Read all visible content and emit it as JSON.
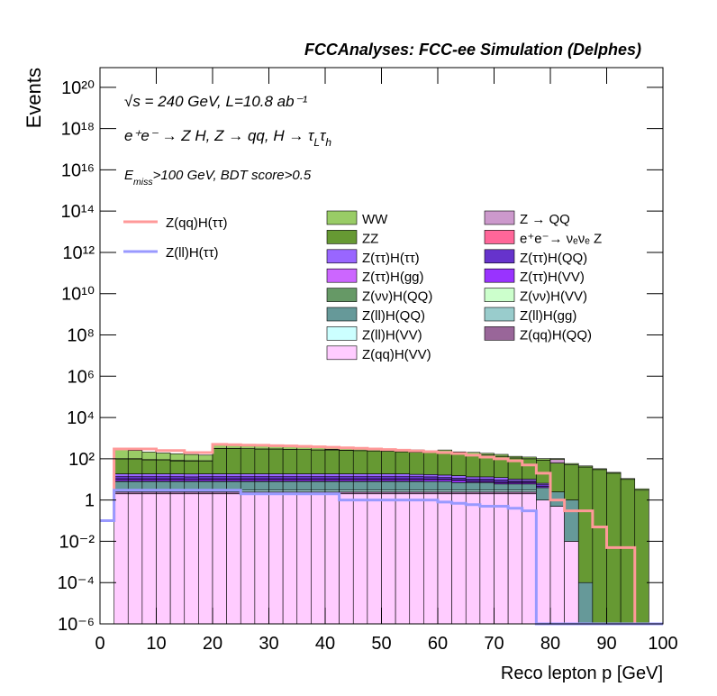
{
  "chart_data": {
    "type": "stacked_histogram",
    "title": "FCCAnalyses: FCC-ee Simulation (Delphes)",
    "annotations": [
      [
        "√s = 240 GeV, L=10.8 ab⁻¹"
      ],
      [
        "e⁺e⁻ → Z H, Z → qq, H → τ",
        "L",
        "τ",
        "h"
      ],
      [
        "E",
        "miss",
        ">100 GeV, BDT score>0.5"
      ]
    ],
    "x_label": "Reco lepton p [GeV]",
    "y_label": "Events",
    "log_y": true,
    "xlim": [
      0,
      100
    ],
    "xticks": [
      0,
      10,
      20,
      30,
      40,
      50,
      60,
      70,
      80,
      90,
      100
    ],
    "ylim": [
      1e-06,
      9e+20
    ],
    "yticks": [
      {
        "value": 1e-06,
        "label": "10⁻⁶"
      },
      {
        "value": 0.0001,
        "label": "10⁻⁴"
      },
      {
        "value": 0.01,
        "label": "10⁻²"
      },
      1,
      {
        "value": 100,
        "label": "10²"
      },
      {
        "value": 10000.0,
        "label": "10⁴"
      },
      {
        "value": 1000000.0,
        "label": "10⁶"
      },
      {
        "value": 100000000.0,
        "label": "10⁸"
      },
      {
        "value": 10000000000.0,
        "label": "10¹⁰"
      },
      {
        "value": 1000000000000.0,
        "label": "10¹²"
      },
      {
        "value": 100000000000000.0,
        "label": "10¹⁴"
      },
      {
        "value": 1e+16,
        "label": "10¹⁶"
      },
      {
        "value": 1e+18,
        "label": "10¹⁸"
      },
      {
        "value": 1e+20,
        "label": "10²⁰"
      }
    ],
    "bins": [
      0,
      2.5,
      5,
      7.5,
      10,
      12.5,
      15,
      17.5,
      20,
      22.5,
      25,
      27.5,
      30,
      32.5,
      35,
      37.5,
      40,
      42.5,
      45,
      47.5,
      50,
      52.5,
      55,
      57.5,
      60,
      62.5,
      65,
      67.5,
      70,
      72.5,
      75,
      77.5,
      80,
      82.5,
      85,
      87.5,
      90,
      92.5,
      95,
      97.5,
      100
    ],
    "series": [
      {
        "name": "WW",
        "color": "#99cc66",
        "values": [
          0,
          200,
          150,
          120,
          100,
          90,
          80,
          70,
          150,
          140,
          130,
          120,
          110,
          100,
          100,
          90,
          90,
          80,
          80,
          70,
          70,
          60,
          60,
          50,
          50,
          40,
          40,
          30,
          30,
          20,
          20,
          15,
          10,
          8,
          5,
          3,
          2,
          1,
          0.5,
          0
        ]
      },
      {
        "name": "Z → QQ",
        "color": "#cc99cc",
        "values": [
          0,
          3,
          3,
          3,
          2,
          5,
          3,
          2,
          3,
          3,
          2,
          2,
          2,
          2,
          2,
          2,
          20,
          2,
          2,
          2,
          2,
          2,
          2,
          1,
          30,
          1,
          1,
          1,
          1,
          1,
          1,
          1,
          30,
          0,
          0,
          0,
          0,
          0,
          0,
          0
        ]
      },
      {
        "name": "ZZ",
        "color": "#669933",
        "values": [
          0,
          80,
          80,
          70,
          70,
          60,
          60,
          60,
          300,
          300,
          290,
          280,
          280,
          270,
          260,
          250,
          250,
          240,
          230,
          220,
          210,
          200,
          190,
          180,
          170,
          160,
          150,
          140,
          120,
          100,
          90,
          80,
          60,
          50,
          40,
          30,
          20,
          10,
          3,
          0
        ]
      },
      {
        "name": "e⁺e⁻→ νₑνₑ Z",
        "color": "#ff6699",
        "values": [
          0,
          0,
          0,
          0,
          0,
          0,
          0,
          0,
          0.01,
          0.01,
          0,
          0,
          0,
          0,
          0,
          0,
          0,
          0,
          0,
          0,
          0,
          0,
          0,
          0,
          0,
          0,
          0,
          0,
          0,
          0,
          0,
          0,
          0,
          0,
          0,
          0,
          0,
          0,
          0,
          0
        ]
      },
      {
        "name": "Z(ττ)H(ττ)",
        "color": "#9966ff",
        "values": [
          0,
          5,
          5,
          5,
          5,
          5,
          5,
          5,
          5,
          5,
          5,
          5,
          5,
          5,
          5,
          5,
          5,
          5,
          5,
          5,
          5,
          5,
          4,
          4,
          4,
          4,
          3,
          3,
          3,
          2,
          2,
          1,
          0,
          0,
          0,
          0,
          0,
          0,
          0,
          0
        ]
      },
      {
        "name": "Z(ττ)H(QQ)",
        "color": "#6633cc",
        "values": [
          0,
          3,
          3,
          3,
          3,
          3,
          3,
          3,
          3,
          3,
          3,
          3,
          3,
          3,
          3,
          3,
          3,
          3,
          3,
          3,
          3,
          3,
          3,
          3,
          2,
          2,
          2,
          2,
          2,
          1,
          1,
          1,
          0,
          0,
          0,
          0,
          0,
          0,
          0,
          0
        ]
      },
      {
        "name": "Z(ττ)H(gg)",
        "color": "#cc66ff",
        "values": [
          0,
          0.3,
          0.3,
          0.3,
          0.3,
          0.3,
          0,
          0.3,
          0.3,
          0.3,
          0.3,
          0.3,
          0.3,
          0.3,
          0.3,
          0.3,
          0.3,
          0.3,
          0.3,
          0.3,
          0.3,
          0.3,
          0.3,
          0.3,
          0.3,
          0.3,
          0.3,
          0.3,
          0.3,
          0.3,
          0.3,
          0,
          0,
          0,
          0,
          0,
          0,
          0,
          0,
          0
        ]
      },
      {
        "name": "Z(ττ)H(VV)",
        "color": "#9933ff",
        "values": [
          0,
          2,
          2,
          2,
          2,
          2,
          2,
          2,
          2,
          2,
          2,
          2,
          2,
          2,
          2,
          2,
          2,
          2,
          2,
          2,
          2,
          2,
          2,
          2,
          2,
          2,
          1,
          1,
          1,
          1,
          1,
          0.5,
          0,
          0,
          0,
          0,
          0,
          0,
          0,
          0
        ]
      },
      {
        "name": "Z(νν)H(QQ)",
        "color": "#669966",
        "values": [
          0,
          0.03,
          0,
          0,
          0,
          0,
          0,
          0,
          0,
          0,
          0,
          0.03,
          0,
          0,
          0,
          0.03,
          0,
          0,
          0,
          0,
          0,
          0,
          0,
          0,
          0,
          0,
          0,
          0,
          0,
          0,
          0,
          0,
          0,
          0,
          0,
          0,
          0,
          0,
          0,
          0
        ]
      },
      {
        "name": "Z(νν)H(VV)",
        "color": "#ccffcc",
        "values": [
          0,
          0.3,
          0.3,
          0.3,
          0.3,
          0.3,
          0.3,
          0.3,
          0.3,
          0.3,
          0.3,
          0.3,
          0.3,
          0.3,
          0.3,
          0.3,
          0.3,
          0.3,
          0.3,
          0.3,
          0.3,
          0.3,
          0.3,
          0,
          0,
          0,
          0,
          0,
          0,
          0,
          0,
          0,
          0,
          0,
          0,
          0,
          0,
          0,
          0,
          0
        ]
      },
      {
        "name": "Z(ll)H(QQ)",
        "color": "#669999",
        "values": [
          0,
          5,
          5,
          5,
          5,
          5,
          5,
          5,
          5,
          5,
          5,
          5,
          5,
          5,
          5,
          5,
          5,
          5,
          5,
          5,
          5,
          5,
          5,
          5,
          5,
          4,
          4,
          4,
          3,
          3,
          3,
          3,
          2,
          1,
          0.0001,
          0,
          0,
          0,
          0,
          0
        ]
      },
      {
        "name": "Z(ll)H(gg)",
        "color": "#99cccc",
        "values": [
          0,
          0.02,
          0.02,
          0.02,
          0.02,
          0.02,
          0.02,
          0.02,
          0.02,
          0.02,
          0.02,
          0.02,
          0.02,
          0.02,
          0.02,
          0.02,
          0.02,
          0.02,
          0.02,
          0.02,
          0.02,
          0.02,
          0.02,
          0.02,
          0.02,
          0.02,
          0.02,
          0.02,
          0.02,
          0.02,
          0.02,
          0,
          0,
          0,
          0,
          0,
          0,
          0,
          0,
          0
        ]
      },
      {
        "name": "Z(ll)H(VV)",
        "color": "#ccffff",
        "values": [
          0,
          0.5,
          0.5,
          0.5,
          0.5,
          0.5,
          0.5,
          0.5,
          0.5,
          0.5,
          0.5,
          0.5,
          0.5,
          0.5,
          0.5,
          0.5,
          0.5,
          0.5,
          0.5,
          0.5,
          0.5,
          0.5,
          0.5,
          0.5,
          0.5,
          0.5,
          0.5,
          0.5,
          0.5,
          0.5,
          0.5,
          0,
          0,
          0,
          0,
          0,
          0,
          0,
          0,
          0
        ]
      },
      {
        "name": "Z(qq)H(QQ)",
        "color": "#996699",
        "values": [
          0,
          0.5,
          0.5,
          0.5,
          0.5,
          0.5,
          0.5,
          0.5,
          0.5,
          0.5,
          0.5,
          0.5,
          0.5,
          0.5,
          0.5,
          0.5,
          0.5,
          0.5,
          0.5,
          0.5,
          0.5,
          0.5,
          0.5,
          0.5,
          0.5,
          0.5,
          0.5,
          0.5,
          0.5,
          0.5,
          0.5,
          0,
          0,
          0,
          0,
          0,
          0,
          0,
          0,
          0
        ]
      },
      {
        "name": "Z(qq)H(VV)",
        "color": "#ffccff",
        "values": [
          0,
          2,
          2,
          2,
          2,
          2,
          2,
          2,
          2,
          2,
          2,
          2,
          2,
          2,
          2,
          2,
          2,
          2,
          2,
          2,
          2,
          2,
          2,
          2,
          2,
          2,
          2,
          2,
          2,
          2,
          2,
          1,
          0.5,
          0.01,
          0,
          0,
          0,
          0,
          0,
          0
        ]
      }
    ],
    "signals": [
      {
        "name": "Z(qq)H(ττ)",
        "color": "#ff9999",
        "values": [
          0.1,
          300,
          300,
          300,
          250,
          250,
          200,
          200,
          500,
          480,
          460,
          450,
          430,
          420,
          400,
          380,
          360,
          340,
          320,
          300,
          280,
          260,
          240,
          220,
          200,
          180,
          150,
          120,
          100,
          80,
          50,
          20,
          1,
          0.3,
          0.3,
          0.05,
          0.005,
          0.005,
          0,
          0
        ]
      },
      {
        "name": "Z(ll)H(ττ)",
        "color": "#9999ff",
        "values": [
          0.1,
          3,
          3,
          3,
          3,
          3,
          3,
          3,
          3,
          3,
          2,
          2,
          2,
          2,
          2,
          2,
          2,
          1,
          1,
          1,
          1,
          1,
          1,
          1,
          0.8,
          0.7,
          0.6,
          0.5,
          0.5,
          0.4,
          0.3,
          0,
          0,
          0,
          0,
          0,
          0,
          0,
          0,
          0
        ]
      }
    ]
  }
}
